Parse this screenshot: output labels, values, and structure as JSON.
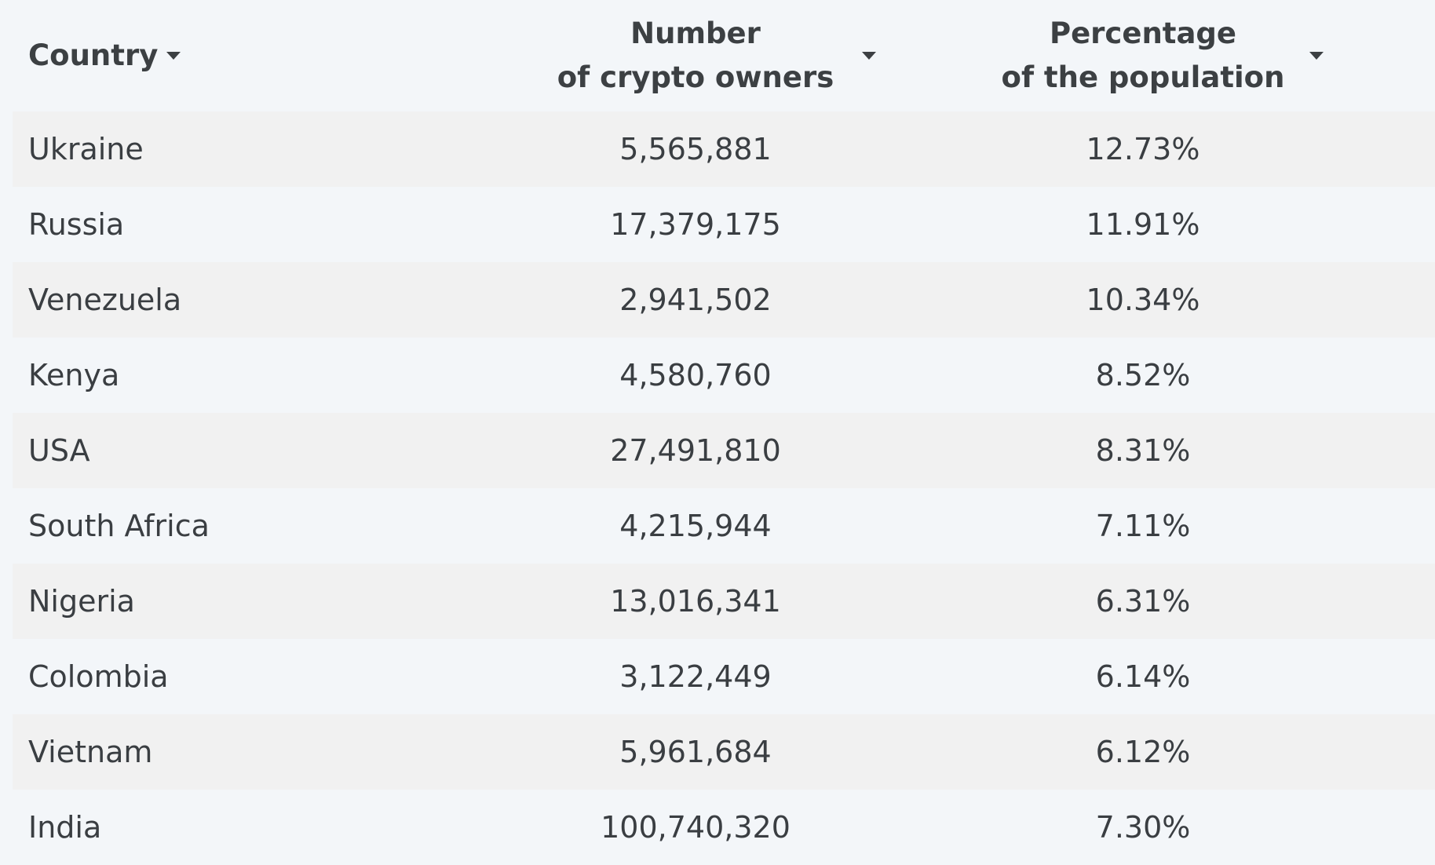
{
  "chart_data": {
    "type": "table",
    "columns": [
      {
        "key": "country",
        "label": "Country"
      },
      {
        "key": "owners",
        "label": "Number\nof crypto owners"
      },
      {
        "key": "percent",
        "label": "Percentage\nof the population"
      }
    ],
    "rows": [
      {
        "country": "Ukraine",
        "owners": "5,565,881",
        "percent": "12.73%"
      },
      {
        "country": "Russia",
        "owners": "17,379,175",
        "percent": "11.91%"
      },
      {
        "country": "Venezuela",
        "owners": "2,941,502",
        "percent": "10.34%"
      },
      {
        "country": "Kenya",
        "owners": "4,580,760",
        "percent": "8.52%"
      },
      {
        "country": "USA",
        "owners": "27,491,810",
        "percent": "8.31%"
      },
      {
        "country": "South Africa",
        "owners": "4,215,944",
        "percent": "7.11%"
      },
      {
        "country": "Nigeria",
        "owners": "13,016,341",
        "percent": "6.31%"
      },
      {
        "country": "Colombia",
        "owners": "3,122,449",
        "percent": "6.14%"
      },
      {
        "country": "Vietnam",
        "owners": "5,961,684",
        "percent": "6.12%"
      },
      {
        "country": "India",
        "owners": "100,740,320",
        "percent": "7.30%"
      }
    ]
  },
  "colors": {
    "background": "#f3f6f9",
    "row_stripe": "#f1f1f1",
    "text": "#3a3e42",
    "header_text": "#3c4043"
  },
  "icons": {
    "sort": "caret-down-icon"
  }
}
